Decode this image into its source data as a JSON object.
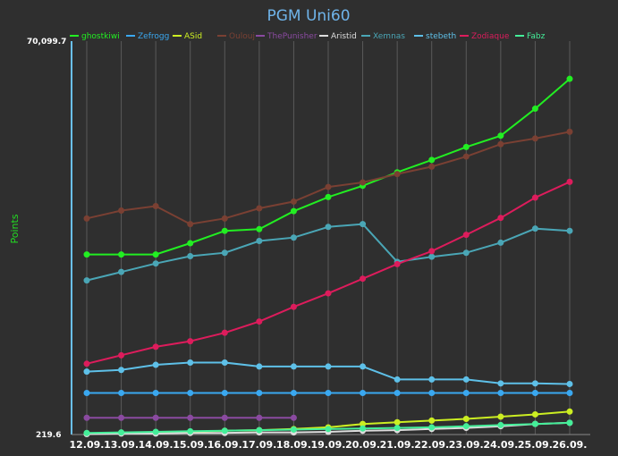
{
  "chart_data": {
    "type": "line",
    "title": "PGM Uni60",
    "xlabel": "",
    "ylabel": "Points",
    "ylim": [
      219.6,
      70099.7
    ],
    "y_tick_labels": [
      "70,099.7",
      "219.6"
    ],
    "categories": [
      "12.09.",
      "13.09.",
      "14.09.",
      "15.09.",
      "16.09.",
      "17.09.",
      "18.09.",
      "19.09.",
      "20.09.",
      "21.09.",
      "22.09.",
      "23.09.",
      "24.09.",
      "25.09.",
      "26.09."
    ],
    "grid": "vertical",
    "legend_position": "top",
    "series": [
      {
        "name": "ghostkiwi",
        "color": "#22ee22",
        "visible": true,
        "values": [
          32200,
          32200,
          32200,
          34200,
          36400,
          36700,
          39900,
          42400,
          44400,
          46800,
          49000,
          51300,
          53300,
          58100,
          63400
        ]
      },
      {
        "name": "Zefrogg",
        "color": "#3aa8f0",
        "visible": true,
        "values": [
          7600,
          7600,
          7600,
          7600,
          7600,
          7600,
          7600,
          7600,
          7600,
          7600,
          7600,
          7600,
          7600,
          7600,
          7600
        ]
      },
      {
        "name": "ASid",
        "color": "#ccee22",
        "visible": true,
        "values": [
          400,
          500,
          600,
          700,
          900,
          1000,
          1200,
          1500,
          2100,
          2400,
          2700,
          3000,
          3400,
          3800,
          4300
        ]
      },
      {
        "name": "Oulouj",
        "color": "#7a4033",
        "visible": true,
        "values": [
          38600,
          40000,
          40800,
          37600,
          38600,
          40400,
          41600,
          44200,
          45000,
          46500,
          47800,
          49600,
          51800,
          52800,
          54000
        ]
      },
      {
        "name": "ThePunisher",
        "color": "#8a4aa0",
        "visible": true,
        "values": [
          3200,
          3200,
          3200,
          3200,
          3200,
          3200,
          3200,
          null,
          null,
          null,
          null,
          null,
          null,
          null,
          null
        ]
      },
      {
        "name": "Aristid",
        "color": "#dddddd",
        "visible": true,
        "values": [
          300,
          400,
          400,
          500,
          500,
          600,
          600,
          700,
          900,
          1000,
          1200,
          1400,
          1700,
          2100,
          2300
        ]
      },
      {
        "name": "Xemnas",
        "color": "#4aa6b6",
        "visible": true,
        "values": [
          27600,
          29100,
          30600,
          31900,
          32500,
          34600,
          35200,
          37100,
          37600,
          30900,
          31800,
          32500,
          34300,
          36800,
          36400
        ]
      },
      {
        "name": "stebeth",
        "color": "#5ec0e8",
        "visible": true,
        "values": [
          11400,
          11700,
          12600,
          13000,
          13000,
          12300,
          12300,
          12300,
          12300,
          10000,
          10000,
          10000,
          9300,
          9300,
          9200
        ]
      },
      {
        "name": "Zodiaque",
        "color": "#dd1c5c",
        "visible": true,
        "values": [
          12800,
          14300,
          15800,
          16800,
          18300,
          20300,
          22900,
          25300,
          27900,
          30500,
          32800,
          35700,
          38700,
          42300,
          45100
        ]
      },
      {
        "name": "Fabz",
        "color": "#44ee99",
        "visible": true,
        "values": [
          500,
          600,
          700,
          800,
          900,
          1000,
          1100,
          1200,
          1300,
          1400,
          1500,
          1700,
          1900,
          2100,
          2300
        ]
      }
    ]
  }
}
